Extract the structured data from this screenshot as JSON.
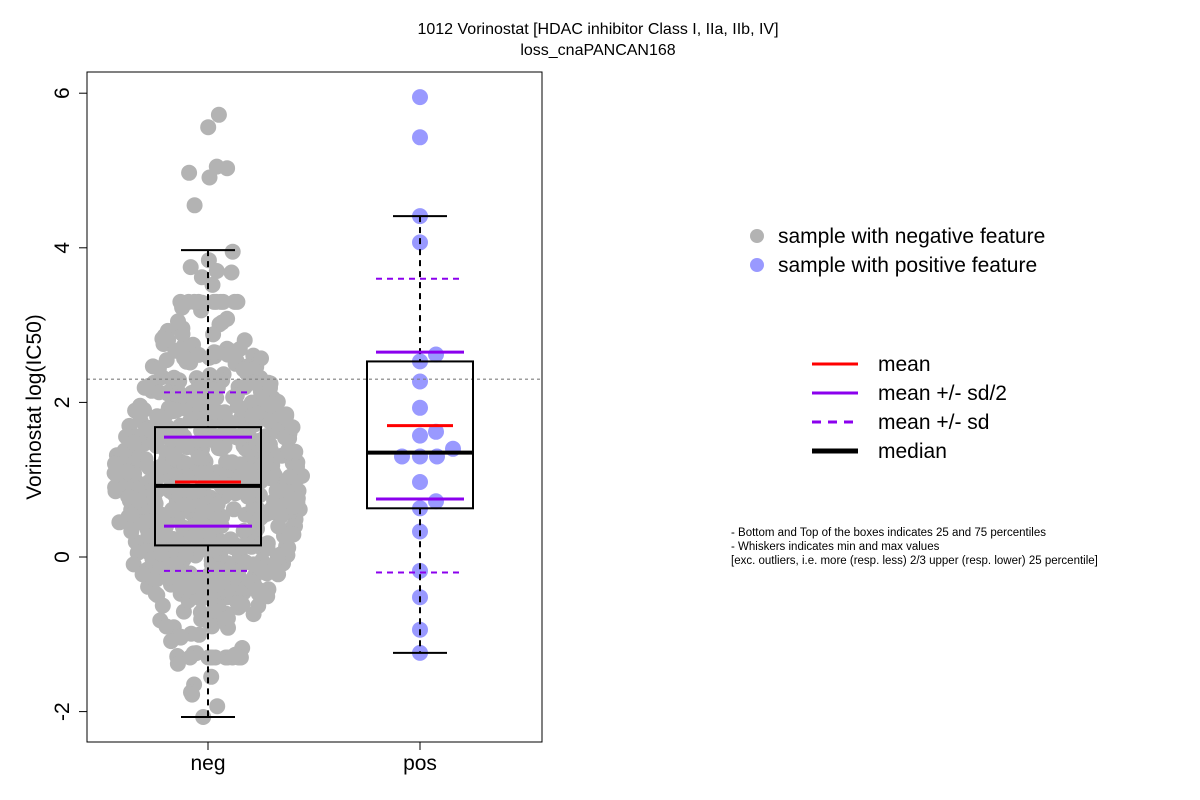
{
  "chart_data": {
    "type": "box",
    "title_line1": "1012 Vorinostat [HDAC inhibitor Class I, IIa, IIb, IV]",
    "title_line2": "loss_cnaPANCAN168",
    "ylabel": "Vorinostat log(IC50)",
    "categories": [
      "neg",
      "pos"
    ],
    "y_ticks": [
      -2,
      0,
      2,
      4,
      6
    ],
    "ylim": [
      -2.4,
      6.3
    ],
    "threshold_line": 2.3,
    "colors": {
      "neg_points": "#b3b3b3",
      "pos_points": "#9999ff",
      "mean": "#ff0000",
      "sd": "#8b00ee",
      "median": "#000000"
    },
    "groups": [
      {
        "name": "neg",
        "stats": {
          "min": -2.07,
          "q1": 0.15,
          "median": 0.92,
          "q3": 1.68,
          "max": 3.97,
          "mean": 0.97,
          "mean_minus_half_sd": 0.4,
          "mean_plus_half_sd": 1.55,
          "mean_minus_sd": -0.18,
          "mean_plus_sd": 2.13
        },
        "n_points": 700,
        "notable_points": [
          5.72,
          5.56,
          5.05,
          5.03,
          4.97,
          4.91,
          4.55,
          3.95,
          3.84,
          3.75,
          3.7,
          3.68,
          3.62,
          3.52,
          -1.38,
          -1.55,
          -1.65,
          -1.75,
          -1.78,
          -1.93,
          -2.07
        ]
      },
      {
        "name": "pos",
        "stats": {
          "min": -1.24,
          "q1": 0.63,
          "median": 1.35,
          "q3": 2.53,
          "max": 4.41,
          "mean": 1.7,
          "mean_minus_half_sd": 0.75,
          "mean_plus_half_sd": 2.65,
          "mean_minus_sd": -0.2,
          "mean_plus_sd": 3.6
        },
        "points": [
          {
            "y": 5.95,
            "dx": 0
          },
          {
            "y": 5.43,
            "dx": 0
          },
          {
            "y": 4.41,
            "dx": 0
          },
          {
            "y": 4.07,
            "dx": 0
          },
          {
            "y": 2.62,
            "dx": 16
          },
          {
            "y": 2.53,
            "dx": 0
          },
          {
            "y": 2.27,
            "dx": 0
          },
          {
            "y": 1.93,
            "dx": 0
          },
          {
            "y": 1.62,
            "dx": 16
          },
          {
            "y": 1.57,
            "dx": 0
          },
          {
            "y": 1.4,
            "dx": 33
          },
          {
            "y": 1.3,
            "dx": -18
          },
          {
            "y": 1.3,
            "dx": 0
          },
          {
            "y": 1.3,
            "dx": 17
          },
          {
            "y": 0.97,
            "dx": 0
          },
          {
            "y": 0.72,
            "dx": 16
          },
          {
            "y": 0.63,
            "dx": 0
          },
          {
            "y": 0.33,
            "dx": 0
          },
          {
            "y": -0.18,
            "dx": 0
          },
          {
            "y": -0.52,
            "dx": 0
          },
          {
            "y": -0.94,
            "dx": 0
          },
          {
            "y": -1.24,
            "dx": 0
          }
        ]
      }
    ],
    "legend_points": [
      {
        "label": "sample with negative feature",
        "color": "#b3b3b3"
      },
      {
        "label": "sample with positive feature",
        "color": "#9999ff"
      }
    ],
    "legend_lines": [
      {
        "label": "mean",
        "color": "#ff0000",
        "style": "solid",
        "width": 3
      },
      {
        "label": "mean +/- sd/2",
        "color": "#8b00ee",
        "style": "solid",
        "width": 3
      },
      {
        "label": "mean +/- sd",
        "color": "#8b00ee",
        "style": "dashed",
        "width": 3
      },
      {
        "label": "median",
        "color": "#000000",
        "style": "solid",
        "width": 5
      }
    ],
    "notes": [
      "- Bottom and Top of the boxes indicates 25 and 75 percentiles",
      "- Whiskers indicates min and max values",
      "[exc. outliers, i.e. more (resp. less) 2/3 upper (resp. lower) 25 percentile]"
    ]
  }
}
